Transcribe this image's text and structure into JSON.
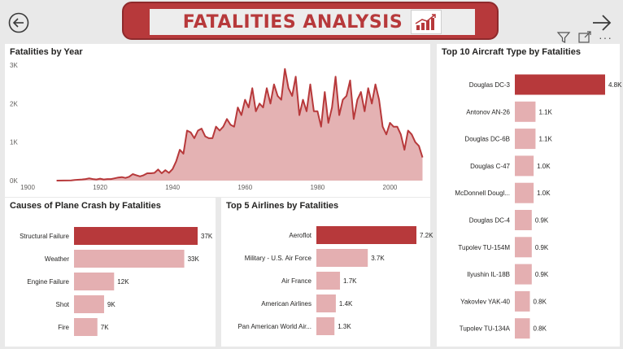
{
  "header": {
    "title": "FATALITIES ANALYSIS"
  },
  "colors": {
    "accent": "#b7393b",
    "bar_highlight": "#b7393b",
    "bar_light": "#e4afb1",
    "area_fill": "#e4b2b3",
    "line": "#b7393b"
  },
  "toolbar": {
    "icons": [
      "filter-icon",
      "focus-mode-icon",
      "more-options-icon"
    ],
    "more_label": "···"
  },
  "nav": {
    "back_icon": "back-arrow-icon",
    "forward_icon": "forward-arrow-icon"
  },
  "chart_data": [
    {
      "type": "area",
      "title": "Fatalities by Year",
      "xlabel": "",
      "ylabel": "",
      "xlim": [
        1900,
        2010
      ],
      "ylim": [
        0,
        3000
      ],
      "x_ticks": [
        1900,
        1920,
        1940,
        1960,
        1980,
        2000
      ],
      "x_tick_labels": [
        "1900",
        "1920",
        "1940",
        "1960",
        "1980",
        "2000"
      ],
      "y_ticks": [
        0,
        1000,
        2000,
        3000
      ],
      "y_tick_labels": [
        "0K",
        "1K",
        "2K",
        "3K"
      ],
      "grid": false,
      "x": [
        1908,
        1912,
        1913,
        1915,
        1916,
        1917,
        1918,
        1919,
        1920,
        1921,
        1922,
        1923,
        1924,
        1925,
        1926,
        1927,
        1928,
        1929,
        1930,
        1931,
        1932,
        1933,
        1934,
        1935,
        1936,
        1937,
        1938,
        1939,
        1940,
        1941,
        1942,
        1943,
        1944,
        1945,
        1946,
        1947,
        1948,
        1949,
        1950,
        1951,
        1952,
        1953,
        1954,
        1955,
        1956,
        1957,
        1958,
        1959,
        1960,
        1961,
        1962,
        1963,
        1964,
        1965,
        1966,
        1967,
        1968,
        1969,
        1970,
        1971,
        1972,
        1973,
        1974,
        1975,
        1976,
        1977,
        1978,
        1979,
        1980,
        1981,
        1982,
        1983,
        1984,
        1985,
        1986,
        1987,
        1988,
        1989,
        1990,
        1991,
        1992,
        1993,
        1994,
        1995,
        1996,
        1997,
        1998,
        1999,
        2000,
        2001,
        2002,
        2003,
        2004,
        2005,
        2006,
        2007,
        2008,
        2009
      ],
      "y": [
        1,
        5,
        14,
        30,
        40,
        60,
        40,
        30,
        50,
        30,
        40,
        40,
        60,
        80,
        90,
        70,
        100,
        170,
        140,
        110,
        140,
        190,
        190,
        200,
        290,
        190,
        270,
        200,
        300,
        500,
        800,
        700,
        1300,
        1250,
        1100,
        1300,
        1350,
        1150,
        1100,
        1100,
        1400,
        1300,
        1400,
        1600,
        1450,
        1400,
        1900,
        1700,
        2100,
        1900,
        2400,
        1800,
        2000,
        1900,
        2400,
        2000,
        2500,
        2200,
        2100,
        2900,
        2400,
        2200,
        2700,
        1700,
        2100,
        1800,
        2500,
        1800,
        1800,
        1400,
        2300,
        1500,
        1900,
        2700,
        1700,
        2100,
        2200,
        2600,
        1600,
        2100,
        2300,
        1800,
        2400,
        2000,
        2500,
        2100,
        1400,
        1200,
        1500,
        1400,
        1400,
        1200,
        800,
        1300,
        1200,
        1000,
        900,
        600
      ]
    },
    {
      "type": "bar",
      "orientation": "horizontal",
      "title": "Causes of Plane Crash by Fatalities",
      "categories": [
        "Structural Failure",
        "Weather",
        "Engine Failure",
        "Shot",
        "Fire"
      ],
      "values": [
        37000,
        33000,
        12000,
        9000,
        7000
      ],
      "data_labels": [
        "37K",
        "33K",
        "12K",
        "9K",
        "7K"
      ],
      "xlim": [
        0,
        37000
      ]
    },
    {
      "type": "bar",
      "orientation": "horizontal",
      "title": "Top 5 Airlines by Fatalities",
      "categories": [
        "Aeroflot",
        "Military - U.S. Air Force",
        "Air France",
        "American Airlines",
        "Pan American World Air..."
      ],
      "values": [
        7200,
        3700,
        1700,
        1400,
        1300
      ],
      "data_labels": [
        "7.2K",
        "3.7K",
        "1.7K",
        "1.4K",
        "1.3K"
      ],
      "xlim": [
        0,
        7200
      ]
    },
    {
      "type": "bar",
      "orientation": "horizontal",
      "title": "Top 10 Aircraft Type by Fatalities",
      "categories": [
        "Douglas DC-3",
        "Antonov AN-26",
        "Douglas DC-6B",
        "Douglas C-47",
        "McDonnell Dougl...",
        "Douglas DC-4",
        "Tupolev TU-154M",
        "Ilyushin IL-18B",
        "Yakovlev YAK-40",
        "Tupolev TU-134A"
      ],
      "values": [
        4800,
        1100,
        1100,
        1000,
        1000,
        900,
        900,
        900,
        800,
        800
      ],
      "data_labels": [
        "4.8K",
        "1.1K",
        "1.1K",
        "1.0K",
        "1.0K",
        "0.9K",
        "0.9K",
        "0.9K",
        "0.8K",
        "0.8K"
      ],
      "xlim": [
        0,
        4800
      ]
    }
  ]
}
